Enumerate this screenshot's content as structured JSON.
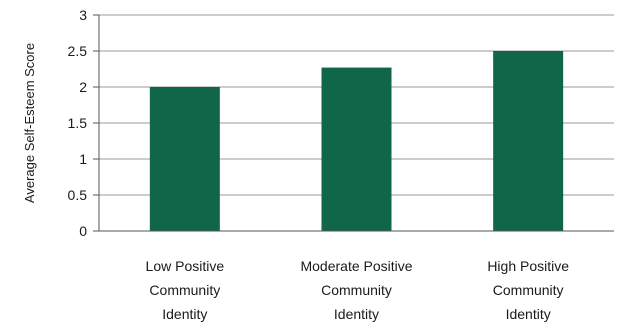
{
  "chart_data": {
    "type": "bar",
    "title": "",
    "xlabel": "",
    "ylabel": "Average Self-Esteem Score",
    "ylim": [
      0,
      3
    ],
    "yticks": [
      "0",
      "0.5",
      "1",
      "1.5",
      "2",
      "2.5",
      "3"
    ],
    "grid": true,
    "legend": "none",
    "categories": [
      [
        "Low Positive",
        "Community",
        "Identity"
      ],
      [
        "Moderate Positive",
        "Community",
        "Identity"
      ],
      [
        "High Positive",
        "Community",
        "Identity"
      ]
    ],
    "values": [
      2.0,
      2.27,
      2.5
    ],
    "colors": {
      "bar": "#0f6648",
      "grid": "#9a9a9a",
      "axis": "#555555"
    }
  }
}
